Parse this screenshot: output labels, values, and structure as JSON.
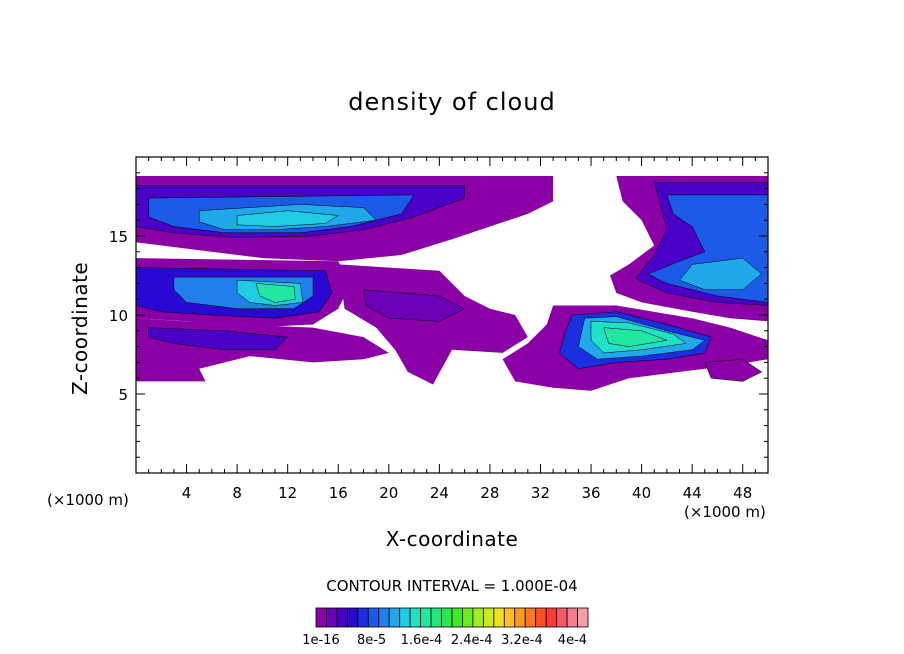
{
  "chart_data": {
    "type": "heatmap",
    "title": "density of cloud",
    "xlabel": "X-coordinate",
    "ylabel": "Z-coordinate",
    "x_unit_left": "(×1000 m)",
    "x_unit_right": "(×1000 m)",
    "xlim": [
      0,
      50
    ],
    "ylim": [
      0,
      20
    ],
    "x_ticks": [
      4,
      8,
      12,
      16,
      20,
      24,
      28,
      32,
      36,
      40,
      44,
      48
    ],
    "x_tick_labels": [
      "4",
      "8",
      "12",
      "16",
      "20",
      "24",
      "28",
      "32",
      "36",
      "40",
      "44",
      "48"
    ],
    "y_ticks": [
      5,
      10,
      15
    ],
    "y_tick_labels": [
      "5",
      "10",
      "15"
    ],
    "contour_interval_text": "CONTOUR INTERVAL = 1.000E-04",
    "colorbar_labels": [
      "1e-16",
      "8e-5",
      "1.6e-4",
      "2.4e-4",
      "3.2e-4",
      "4e-4"
    ],
    "colorbar_label_positions": [
      1e-16,
      8e-05,
      0.00016,
      0.00024,
      0.00032,
      0.0004
    ],
    "colorbar_colors": [
      "#8a00a6",
      "#6c00b6",
      "#4a00c6",
      "#2a08d4",
      "#1a30e0",
      "#1c5ae8",
      "#2080ea",
      "#20a8ea",
      "#20cce4",
      "#20e0c8",
      "#20e8a0",
      "#20e878",
      "#28e850",
      "#40e828",
      "#70ea20",
      "#a0ec20",
      "#cce820",
      "#eee020",
      "#ffc020",
      "#ff9c20",
      "#ff7820",
      "#ff5020",
      "#ff3838",
      "#f85868",
      "#f47c90",
      "#f4a0a8"
    ],
    "cloud_regions": [
      {
        "name": "upper-left cloud layer",
        "x_range": [
          0,
          33
        ],
        "z_range": [
          13.5,
          18.8
        ],
        "peak_density": 0.0001
      },
      {
        "name": "left mid-level cloud",
        "x_range": [
          0,
          16
        ],
        "z_range": [
          8.5,
          13.5
        ],
        "peak_density": 0.00019
      },
      {
        "name": "lower-left cloud",
        "x_range": [
          0,
          20
        ],
        "z_range": [
          5.5,
          8.5
        ],
        "peak_density": 2e-05
      },
      {
        "name": "central cloud",
        "x_range": [
          16,
          31
        ],
        "z_range": [
          5.2,
          13
        ],
        "peak_density": 2e-05
      },
      {
        "name": "right cloud core",
        "x_range": [
          33,
          50
        ],
        "z_range": [
          5.2,
          10.5
        ],
        "peak_density": 0.00022
      },
      {
        "name": "upper-right cloud layer",
        "x_range": [
          38,
          50
        ],
        "z_range": [
          9.5,
          18.8
        ],
        "peak_density": 0.0001
      }
    ]
  }
}
